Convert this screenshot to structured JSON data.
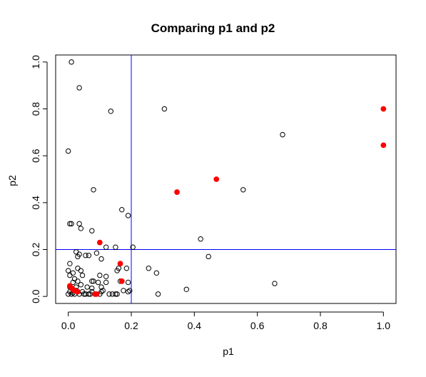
{
  "chart_data": {
    "type": "scatter",
    "title": "Comparing p1 and p2",
    "xlabel": "p1",
    "ylabel": "p2",
    "xlim": [
      -0.04,
      1.04
    ],
    "ylim": [
      -0.03,
      1.03
    ],
    "xticks": [
      0.0,
      0.2,
      0.4,
      0.6,
      0.8,
      1.0
    ],
    "xtick_labels": [
      "0.0",
      "0.2",
      "0.4",
      "0.6",
      "0.8",
      "1.0"
    ],
    "yticks": [
      0.0,
      0.2,
      0.4,
      0.6,
      0.8,
      1.0
    ],
    "ytick_labels": [
      "0.0",
      "0.2",
      "0.4",
      "0.6",
      "0.8",
      "1.0"
    ],
    "grid": false,
    "reference_lines": {
      "x": 0.2,
      "y": 0.2,
      "color": "#0000ff"
    },
    "series": [
      {
        "marker": "open-circle",
        "color": "#000000",
        "points": [
          [
            0.01,
            1.0
          ],
          [
            0.035,
            0.89
          ],
          [
            0.135,
            0.79
          ],
          [
            0.305,
            0.8
          ],
          [
            0.0,
            0.62
          ],
          [
            0.68,
            0.69
          ],
          [
            0.08,
            0.455
          ],
          [
            0.555,
            0.455
          ],
          [
            0.17,
            0.37
          ],
          [
            0.19,
            0.345
          ],
          [
            0.005,
            0.31
          ],
          [
            0.01,
            0.31
          ],
          [
            0.035,
            0.31
          ],
          [
            0.04,
            0.29
          ],
          [
            0.075,
            0.28
          ],
          [
            0.42,
            0.245
          ],
          [
            0.12,
            0.21
          ],
          [
            0.15,
            0.21
          ],
          [
            0.205,
            0.21
          ],
          [
            0.025,
            0.19
          ],
          [
            0.03,
            0.17
          ],
          [
            0.035,
            0.18
          ],
          [
            0.055,
            0.175
          ],
          [
            0.065,
            0.175
          ],
          [
            0.09,
            0.185
          ],
          [
            0.105,
            0.16
          ],
          [
            0.445,
            0.17
          ],
          [
            0.005,
            0.14
          ],
          [
            0.015,
            0.1
          ],
          [
            0.03,
            0.12
          ],
          [
            0.04,
            0.11
          ],
          [
            0.185,
            0.12
          ],
          [
            0.255,
            0.12
          ],
          [
            0.28,
            0.1
          ],
          [
            0.0,
            0.11
          ],
          [
            0.005,
            0.09
          ],
          [
            0.02,
            0.075
          ],
          [
            0.045,
            0.09
          ],
          [
            0.1,
            0.09
          ],
          [
            0.12,
            0.085
          ],
          [
            0.155,
            0.11
          ],
          [
            0.16,
            0.12
          ],
          [
            0.015,
            0.06
          ],
          [
            0.03,
            0.065
          ],
          [
            0.04,
            0.05
          ],
          [
            0.075,
            0.065
          ],
          [
            0.08,
            0.065
          ],
          [
            0.095,
            0.06
          ],
          [
            0.12,
            0.06
          ],
          [
            0.165,
            0.065
          ],
          [
            0.19,
            0.06
          ],
          [
            0.375,
            0.03
          ],
          [
            0.655,
            0.055
          ],
          [
            0.005,
            0.04
          ],
          [
            0.01,
            0.035
          ],
          [
            0.025,
            0.04
          ],
          [
            0.06,
            0.04
          ],
          [
            0.075,
            0.035
          ],
          [
            0.105,
            0.04
          ],
          [
            0.11,
            0.025
          ],
          [
            0.0,
            0.01
          ],
          [
            0.005,
            0.02
          ],
          [
            0.01,
            0.01
          ],
          [
            0.015,
            0.015
          ],
          [
            0.02,
            0.01
          ],
          [
            0.025,
            0.025
          ],
          [
            0.035,
            0.01
          ],
          [
            0.045,
            0.02
          ],
          [
            0.05,
            0.01
          ],
          [
            0.055,
            0.01
          ],
          [
            0.065,
            0.01
          ],
          [
            0.07,
            0.01
          ],
          [
            0.075,
            0.02
          ],
          [
            0.085,
            0.01
          ],
          [
            0.1,
            0.01
          ],
          [
            0.105,
            0.02
          ],
          [
            0.13,
            0.01
          ],
          [
            0.14,
            0.01
          ],
          [
            0.15,
            0.01
          ],
          [
            0.155,
            0.01
          ],
          [
            0.175,
            0.025
          ],
          [
            0.19,
            0.02
          ],
          [
            0.195,
            0.025
          ],
          [
            0.285,
            0.01
          ]
        ]
      },
      {
        "marker": "filled-circle",
        "color": "#ff0000",
        "points": [
          [
            1.0,
            0.8
          ],
          [
            1.0,
            0.645
          ],
          [
            0.47,
            0.5
          ],
          [
            0.345,
            0.445
          ],
          [
            0.1,
            0.23
          ],
          [
            0.165,
            0.14
          ],
          [
            0.17,
            0.065
          ],
          [
            0.005,
            0.045
          ],
          [
            0.01,
            0.035
          ],
          [
            0.015,
            0.03
          ],
          [
            0.02,
            0.025
          ],
          [
            0.03,
            0.02
          ],
          [
            0.085,
            0.01
          ],
          [
            0.09,
            0.01
          ]
        ]
      }
    ]
  }
}
